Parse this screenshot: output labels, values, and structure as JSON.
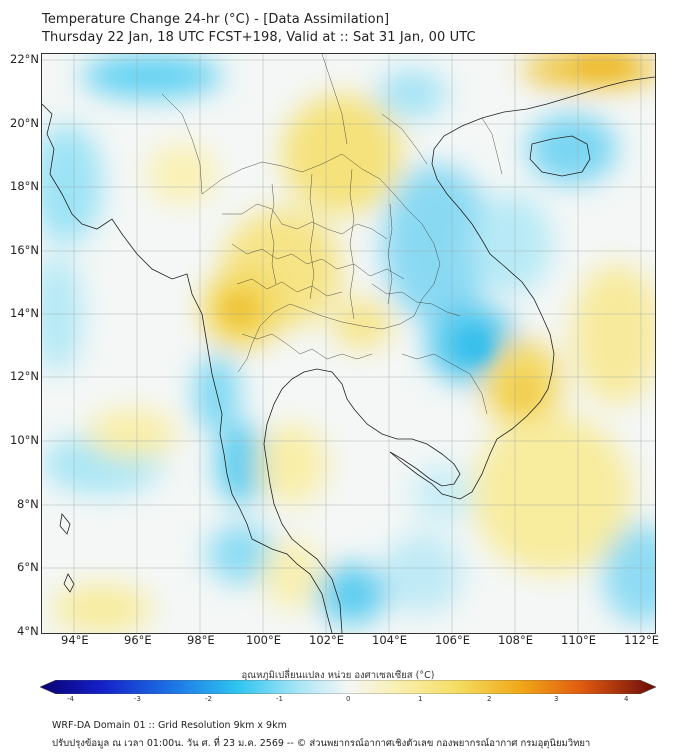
{
  "header": {
    "title_line1": "Temperature Change 24-hr (°C) - [Data Assimilation]",
    "title_line2": "Thursday 22 Jan, 18 UTC FCST+198, Valid at :: Sat 31 Jan, 00 UTC"
  },
  "axes": {
    "lat_labels": [
      "22°N",
      "20°N",
      "18°N",
      "16°N",
      "14°N",
      "12°N",
      "10°N",
      "8°N",
      "6°N",
      "4°N"
    ],
    "lon_labels": [
      "94°E",
      "96°E",
      "98°E",
      "100°E",
      "102°E",
      "104°E",
      "106°E",
      "108°E",
      "110°E",
      "112°E"
    ]
  },
  "colorbar": {
    "title": "อุณหภูมิเปลี่ยนแปลง หน่วย องศาเซลเซียส (°C)",
    "ticks": [
      "-4",
      "-3",
      "-2",
      "-1",
      "0",
      "1",
      "2",
      "3",
      "4"
    ],
    "colors": {
      "cold_extreme": "#1a0a8a",
      "cold": "#2ec4f0",
      "neutral": "#f4f6f6",
      "warm": "#f7e27a",
      "hot": "#f08c10",
      "hot_extreme": "#7a1010"
    }
  },
  "footer": {
    "line1": "WRF-DA Domain 01 :: Grid Resolution 9km x 9km",
    "line2": "ปรับปรุงข้อมูล ณ เวลา 01:00น. วัน ศ. ที่ 23 ม.ค. 2569 -- © ส่วนพยากรณ์อากาศเชิงตัวเลข กองพยากรณ์อากาศ กรมอุตุนิยมวิทยา"
  }
}
